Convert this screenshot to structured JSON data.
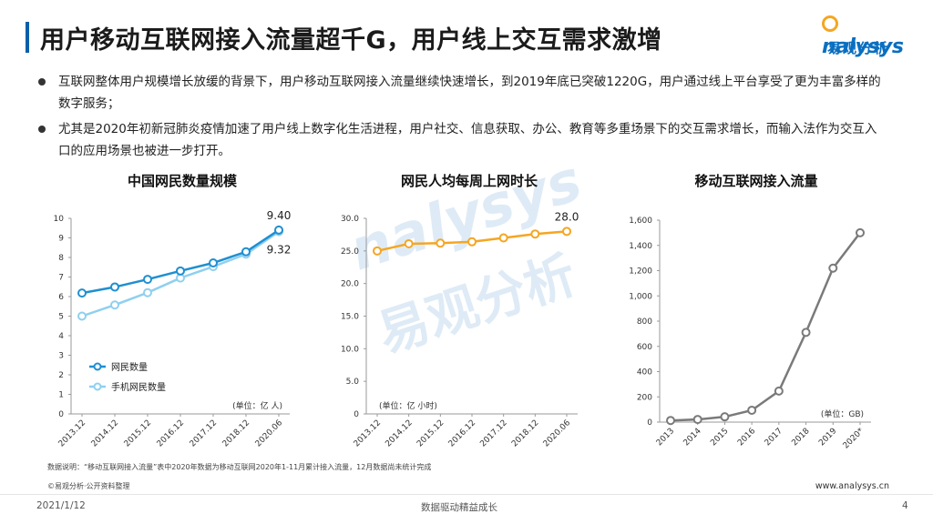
{
  "header": {
    "title": "用户移动互联网接入流量超千G，用户线上交互需求激增",
    "logo_en": "nalysys",
    "logo_cn": "易观分析"
  },
  "bullets": [
    "互联网整体用户规模增长放缓的背景下，用户移动互联网接入流量继续快速增长，到2019年底已突破1220G，用户通过线上平台享受了更为丰富多样的数字服务；",
    "尤其是2020年初新冠肺炎疫情加速了用户线上数字化生活进程，用户社交、信息获取、办公、教育等多重场景下的交互需求增长，而输入法作为交互入口的应用场景也被进一步打开。"
  ],
  "watermark": {
    "en": "nalysys",
    "cn": "易观分析"
  },
  "colors": {
    "accent": "#0a5fa8",
    "series_dark_blue": "#1f8fd1",
    "series_light_blue": "#8fd0f0",
    "series_orange": "#f5a623",
    "series_gray": "#7a7a7a"
  },
  "chart_data": [
    {
      "type": "line",
      "title": "中国网民数量规模",
      "categories": [
        "2013.12",
        "2014.12",
        "2015.12",
        "2016.12",
        "2017.12",
        "2018.12",
        "2020.06"
      ],
      "series": [
        {
          "name": "网民数量",
          "values": [
            6.18,
            6.49,
            6.88,
            7.31,
            7.72,
            8.29,
            9.4
          ]
        },
        {
          "name": "手机网民数量",
          "values": [
            5.0,
            5.57,
            6.2,
            6.95,
            7.53,
            8.17,
            9.32
          ]
        }
      ],
      "ylim": [
        0,
        10
      ],
      "yticks": [
        0,
        1,
        2,
        3,
        4,
        5,
        6,
        7,
        8,
        9,
        10
      ],
      "ytick_labels": [
        "0",
        "1",
        "2",
        "3",
        "4",
        "5",
        "6",
        "7",
        "8",
        "9",
        "10"
      ],
      "data_labels": [
        "9.40",
        "9.32"
      ],
      "unit": "(单位：亿 人)",
      "legend": "bottom-left",
      "grid": false
    },
    {
      "type": "line",
      "title": "网民人均每周上网时长",
      "categories": [
        "2013.12",
        "2014.12",
        "2015.12",
        "2016.12",
        "2017.12",
        "2018.12",
        "2020.06"
      ],
      "series": [
        {
          "values": [
            25.0,
            26.1,
            26.2,
            26.4,
            27.0,
            27.6,
            28.0
          ]
        }
      ],
      "ylim": [
        0,
        30
      ],
      "yticks": [
        0,
        5,
        10,
        15,
        20,
        25,
        30
      ],
      "ytick_labels": [
        "0",
        "5.0",
        "10.0",
        "15.0",
        "20.0",
        "25.0",
        "30.0"
      ],
      "data_labels": [
        "28.0"
      ],
      "unit": "(单位：亿 小时)",
      "grid": false
    },
    {
      "type": "line",
      "title": "移动互联网接入流量",
      "categories": [
        "2013",
        "2014",
        "2015",
        "2016",
        "2017",
        "2018",
        "2019",
        "2020*"
      ],
      "series": [
        {
          "values": [
            13,
            21,
            42,
            94,
            246,
            711,
            1220,
            1500
          ]
        }
      ],
      "ylim": [
        0,
        1600
      ],
      "yticks": [
        0,
        200,
        400,
        600,
        800,
        1000,
        1200,
        1400,
        1600
      ],
      "ytick_labels": [
        "0",
        "200",
        "400",
        "600",
        "800",
        "1,000",
        "1,200",
        "1,400",
        "1,600"
      ],
      "unit": "(单位：GB)",
      "grid": false
    }
  ],
  "notes": {
    "data_note": "数据说明：“移动互联网接入流量”表中2020年数据为移动互联网2020年1-11月累计接入流量，12月数据尚未统计完成",
    "source": "©易观分析·公开资料整理",
    "site": "www.analysys.cn"
  },
  "footer": {
    "date": "2021/1/12",
    "slogan": "数据驱动精益成长",
    "page": "4"
  }
}
